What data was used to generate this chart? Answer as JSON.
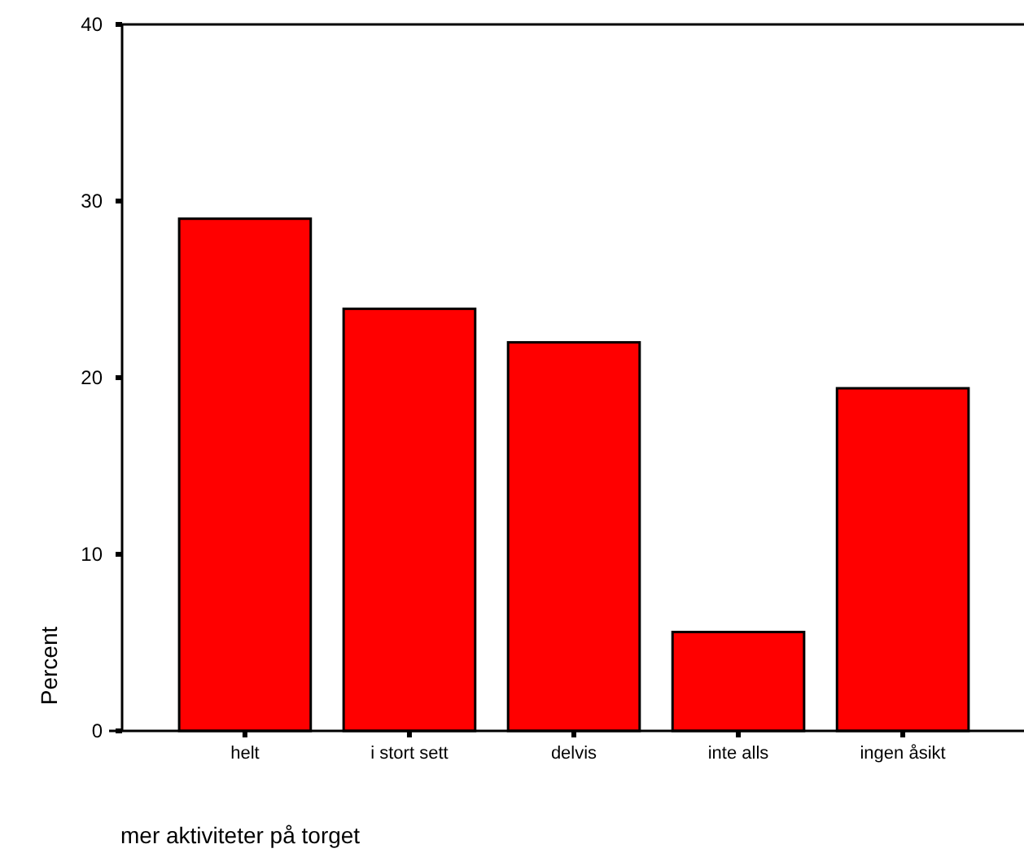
{
  "chart_data": {
    "type": "bar",
    "xlabel": "mer aktiviteter på torget",
    "ylabel": "Percent",
    "categories": [
      "helt",
      "i stort sett",
      "delvis",
      "inte alls",
      "ingen åsikt"
    ],
    "values": [
      29.0,
      23.9,
      22.0,
      5.6,
      19.4
    ],
    "color": "#ff0000",
    "ylim": [
      0,
      40
    ],
    "yticks": [
      0,
      10,
      20,
      30,
      40
    ],
    "grid": false
  }
}
